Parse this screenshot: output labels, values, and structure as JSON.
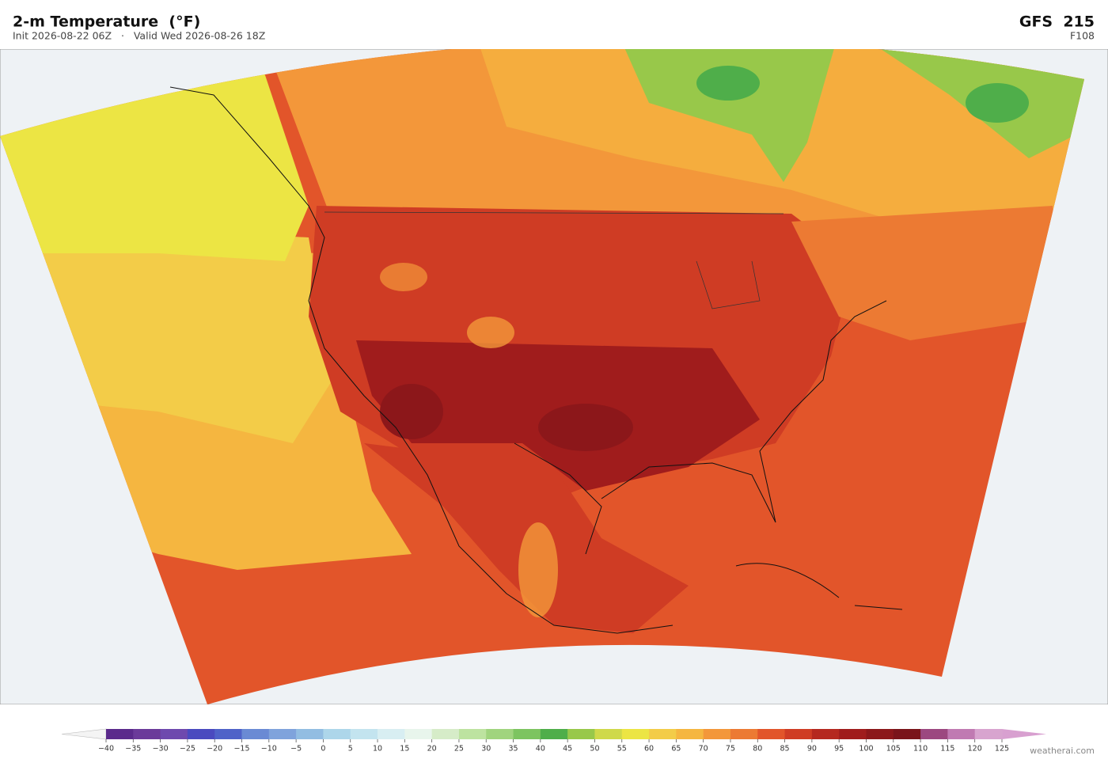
{
  "header": {
    "title": "2-m Temperature  (°F)",
    "subtitle": "Init 2026-08-22 06Z   ·   Valid Wed 2026-08-26 18Z",
    "model": "GFS  215",
    "forecast_hour": "F108"
  },
  "colorbar": {
    "ticks": [
      {
        "value": -40,
        "label": "−40"
      },
      {
        "value": -35,
        "label": "−35"
      },
      {
        "value": -30,
        "label": "−30"
      },
      {
        "value": -25,
        "label": "−25"
      },
      {
        "value": -20,
        "label": "−20"
      },
      {
        "value": -15,
        "label": "−15"
      },
      {
        "value": -10,
        "label": "−10"
      },
      {
        "value": -5,
        "label": "−5"
      },
      0,
      5,
      10,
      15,
      20,
      25,
      30,
      35,
      40,
      45,
      50,
      55,
      60,
      65,
      70,
      75,
      80,
      85,
      90,
      95,
      100,
      105,
      110,
      115,
      120,
      125
    ],
    "colors": [
      "#5b2a8c",
      "#6b3a9a",
      "#6e49ae",
      "#4a4abf",
      "#4f62c8",
      "#6a8ad4",
      "#7fa3dc",
      "#92bde2",
      "#add6ea",
      "#c3e4ef",
      "#d8eef2",
      "#e8f5ec",
      "#d6ecc8",
      "#bde3a0",
      "#a0d47e",
      "#7dc460",
      "#4fae4a",
      "#98c84a",
      "#cfd94a",
      "#ece544",
      "#f3cc48",
      "#f5b640",
      "#f3973a",
      "#ec7a33",
      "#e2552a",
      "#cf3c24",
      "#b5281f",
      "#a01c1c",
      "#8c171a",
      "#7a141a",
      "#9c4880",
      "#c07ab2",
      "#d8a4cf"
    ],
    "under_color": "#f4f4f4",
    "over_color": "#d8a0d0"
  },
  "footer": {
    "credit": "weatherai.com"
  }
}
